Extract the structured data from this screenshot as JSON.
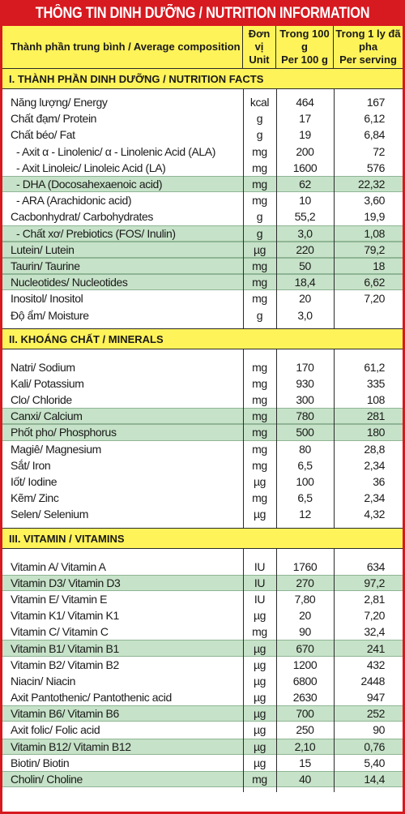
{
  "title": "THÔNG TIN DINH DƯỠNG / NUTRITION INFORMATION",
  "colors": {
    "frame": "#d71920",
    "header": "#fff35a",
    "highlight": "#c6e2c8"
  },
  "header": {
    "composition": "Thành phần trung bình / Average composition",
    "unit_line1": "Đơn vị",
    "unit_line2": "Unit",
    "per100_line1": "Trong 100 g",
    "per100_line2": "Per 100 g",
    "serving_line1": "Trong 1 ly đã pha",
    "serving_line2": "Per serving"
  },
  "sections": [
    {
      "heading": "I. THÀNH PHẦN DINH DƯỠNG / NUTRITION FACTS",
      "rows": [
        {
          "name": "Năng lượng/ Energy",
          "unit": "kcal",
          "per100": "464",
          "serving": "167",
          "hl": false
        },
        {
          "name": "Chất đạm/ Protein",
          "unit": "g",
          "per100": "17",
          "serving": "6,12",
          "hl": false
        },
        {
          "name": "Chất béo/ Fat",
          "unit": "g",
          "per100": "19",
          "serving": "6,84",
          "hl": false
        },
        {
          "name": "  - Axit α - Linolenic/ α - Linolenic Acid (ALA)",
          "unit": "mg",
          "per100": "200",
          "serving": "72",
          "hl": false
        },
        {
          "name": "  - Axit Linoleic/ Linoleic Acid (LA)",
          "unit": "mg",
          "per100": "1600",
          "serving": "576",
          "hl": false
        },
        {
          "name": "  - DHA (Docosahexaenoic acid)",
          "unit": "mg",
          "per100": "62",
          "serving": "22,32",
          "hl": true
        },
        {
          "name": "  - ARA (Arachidonic acid)",
          "unit": "mg",
          "per100": "10",
          "serving": "3,60",
          "hl": false
        },
        {
          "name": "Cacbonhydrat/ Carbohydrates",
          "unit": "g",
          "per100": "55,2",
          "serving": "19,9",
          "hl": false
        },
        {
          "name": "  - Chất xơ/ Prebiotics (FOS/ Inulin)",
          "unit": "g",
          "per100": "3,0",
          "serving": "1,08",
          "hl": true
        },
        {
          "name": "Lutein/ Lutein",
          "unit": "µg",
          "per100": "220",
          "serving": "79,2",
          "hl": true
        },
        {
          "name": "Taurin/ Taurine",
          "unit": "mg",
          "per100": "50",
          "serving": "18",
          "hl": true
        },
        {
          "name": "Nucleotides/ Nucleotides",
          "unit": "mg",
          "per100": "18,4",
          "serving": "6,62",
          "hl": true
        },
        {
          "name": "Inositol/ Inositol",
          "unit": "mg",
          "per100": "20",
          "serving": "7,20",
          "hl": false
        },
        {
          "name": "Độ ẩm/ Moisture",
          "unit": "g",
          "per100": "3,0",
          "serving": "",
          "hl": false
        }
      ]
    },
    {
      "heading": "II. KHOÁNG CHẤT / MINERALS",
      "rows": [
        {
          "name": "Natri/ Sodium",
          "unit": "mg",
          "per100": "170",
          "serving": "61,2",
          "hl": false
        },
        {
          "name": "Kali/ Potassium",
          "unit": "mg",
          "per100": "930",
          "serving": "335",
          "hl": false
        },
        {
          "name": "Clo/ Chloride",
          "unit": "mg",
          "per100": "300",
          "serving": "108",
          "hl": false
        },
        {
          "name": "Canxi/ Calcium",
          "unit": "mg",
          "per100": "780",
          "serving": "281",
          "hl": true
        },
        {
          "name": "Phốt pho/ Phosphorus",
          "unit": "mg",
          "per100": "500",
          "serving": "180",
          "hl": true
        },
        {
          "name": "Magiê/ Magnesium",
          "unit": "mg",
          "per100": "80",
          "serving": "28,8",
          "hl": false
        },
        {
          "name": "Sắt/ Iron",
          "unit": "mg",
          "per100": "6,5",
          "serving": "2,34",
          "hl": false
        },
        {
          "name": "Iốt/ Iodine",
          "unit": "µg",
          "per100": "100",
          "serving": "36",
          "hl": false
        },
        {
          "name": "Kẽm/ Zinc",
          "unit": "mg",
          "per100": "6,5",
          "serving": "2,34",
          "hl": false
        },
        {
          "name": "Selen/ Selenium",
          "unit": "µg",
          "per100": "12",
          "serving": "4,32",
          "hl": false
        }
      ]
    },
    {
      "heading": "III. VITAMIN / VITAMINS",
      "rows": [
        {
          "name": "Vitamin A/ Vitamin A",
          "unit": "IU",
          "per100": "1760",
          "serving": "634",
          "hl": false
        },
        {
          "name": "Vitamin D3/ Vitamin D3",
          "unit": "IU",
          "per100": "270",
          "serving": "97,2",
          "hl": true
        },
        {
          "name": "Vitamin E/ Vitamin E",
          "unit": "IU",
          "per100": "7,80",
          "serving": "2,81",
          "hl": false
        },
        {
          "name": "Vitamin K1/ Vitamin K1",
          "unit": "µg",
          "per100": "20",
          "serving": "7,20",
          "hl": false
        },
        {
          "name": "Vitamin C/ Vitamin C",
          "unit": "mg",
          "per100": "90",
          "serving": "32,4",
          "hl": false
        },
        {
          "name": "Vitamin B1/ Vitamin B1",
          "unit": "µg",
          "per100": "670",
          "serving": "241",
          "hl": true
        },
        {
          "name": "Vitamin B2/ Vitamin B2",
          "unit": "µg",
          "per100": "1200",
          "serving": "432",
          "hl": false
        },
        {
          "name": "Niacin/ Niacin",
          "unit": "µg",
          "per100": "6800",
          "serving": "2448",
          "hl": false
        },
        {
          "name": "Axit Pantothenic/ Pantothenic acid",
          "unit": "µg",
          "per100": "2630",
          "serving": "947",
          "hl": false
        },
        {
          "name": "Vitamin B6/ Vitamin B6",
          "unit": "µg",
          "per100": "700",
          "serving": "252",
          "hl": true
        },
        {
          "name": "Axit folic/ Folic acid",
          "unit": "µg",
          "per100": "250",
          "serving": "90",
          "hl": false
        },
        {
          "name": "Vitamin B12/ Vitamin B12",
          "unit": "µg",
          "per100": "2,10",
          "serving": "0,76",
          "hl": true
        },
        {
          "name": "Biotin/ Biotin",
          "unit": "µg",
          "per100": "15",
          "serving": "5,40",
          "hl": false
        },
        {
          "name": "Cholin/ Choline",
          "unit": "mg",
          "per100": "40",
          "serving": "14,4",
          "hl": true
        }
      ]
    }
  ]
}
